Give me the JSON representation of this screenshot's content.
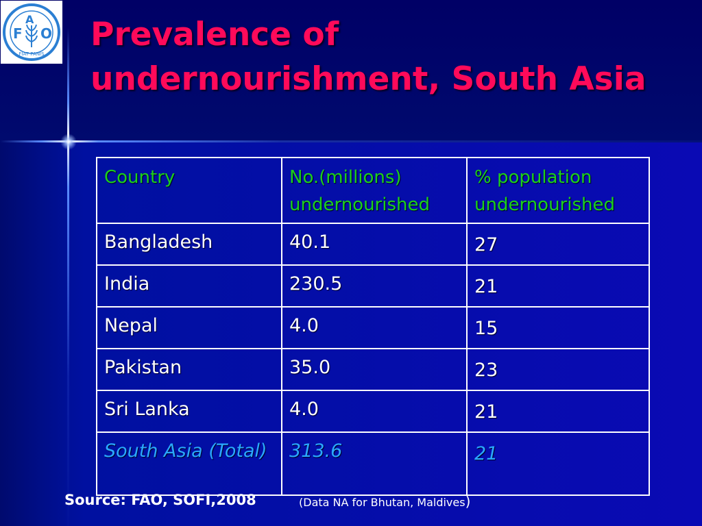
{
  "slide": {
    "title": "Prevalence of undernourishment, South Asia"
  },
  "logo": {
    "letters": [
      "F",
      "A",
      "O"
    ],
    "motto": "FIAT PANIS"
  },
  "table": {
    "headers": [
      "Country",
      "No.(millions) undernourished",
      "% population undernourished"
    ],
    "rows": [
      {
        "country": "Bangladesh",
        "millions": "40.1",
        "percent": "27"
      },
      {
        "country": "India",
        "millions": "230.5",
        "percent": "21"
      },
      {
        "country": "Nepal",
        "millions": "4.0",
        "percent": "15"
      },
      {
        "country": "Pakistan",
        "millions": "35.0",
        "percent": "23"
      },
      {
        "country": "Sri Lanka",
        "millions": "4.0",
        "percent": "21"
      },
      {
        "country": "South Asia (Total)",
        "millions": "313.6",
        "percent": "21"
      }
    ]
  },
  "footer": {
    "source": "Source:  FAO, SOFI,2008",
    "note_open": "(",
    "note": "Data NA for Bhutan, Maldives",
    "note_close": ")"
  },
  "colors": {
    "title": "#ff0a5a",
    "header_text": "#1ccf1c",
    "total_row": "#2aa8ff",
    "background": "#0a0a8c"
  }
}
